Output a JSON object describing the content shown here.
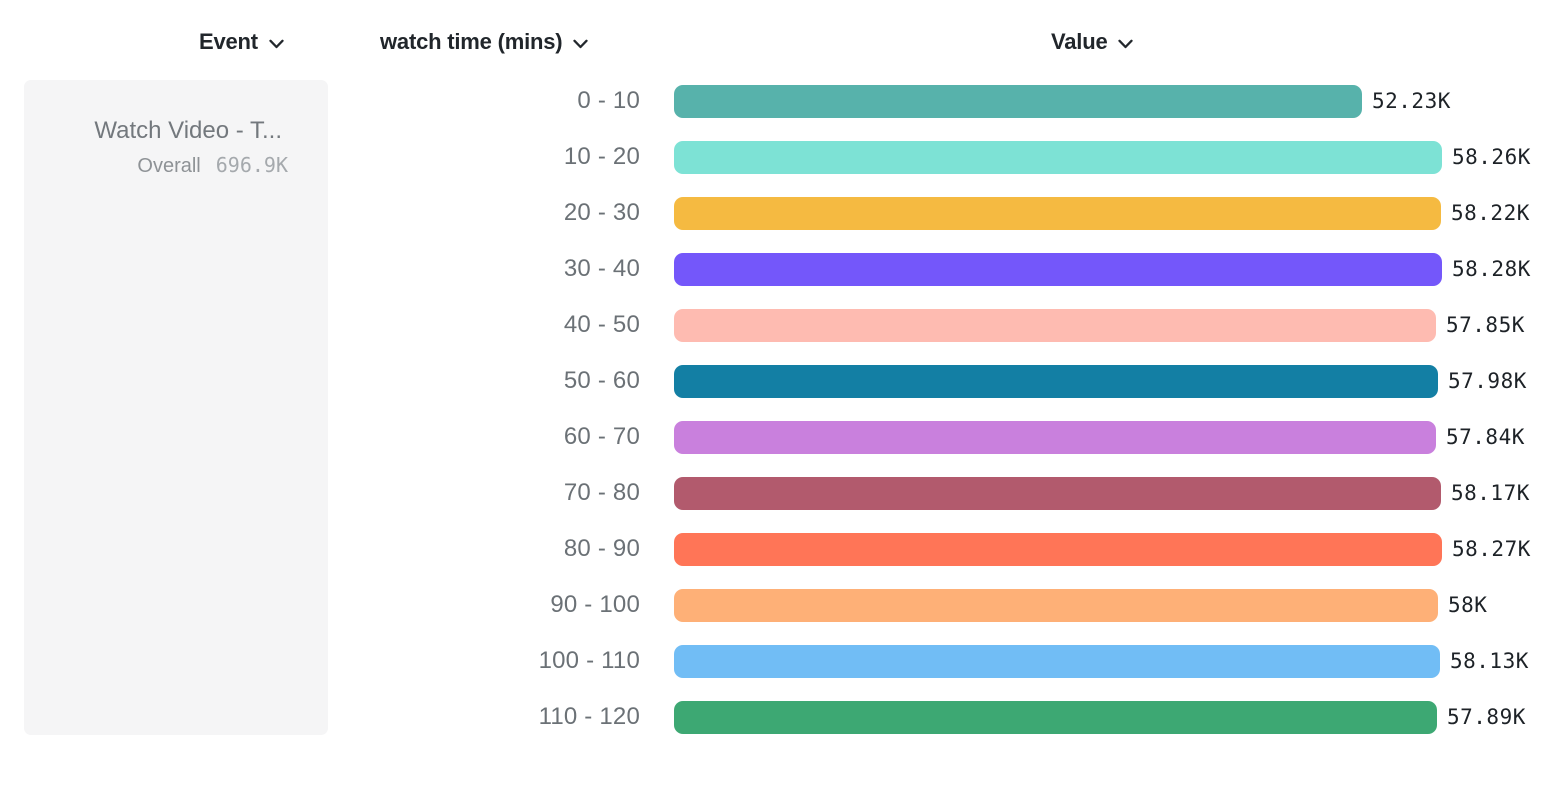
{
  "page": {
    "background": "#ffffff"
  },
  "columns": {
    "event": {
      "label": "Event"
    },
    "breakdown": {
      "label": "watch time (mins)"
    },
    "value": {
      "label": "Value"
    }
  },
  "icons": {
    "chevron_down": "chevron-down-icon",
    "chevron_color": "#23282d"
  },
  "event_card": {
    "title": "Watch Video - T...",
    "overall_label": "Overall",
    "overall_value": "696.9K",
    "background": "#f5f5f6"
  },
  "chart_data": {
    "type": "bar",
    "orientation": "horizontal",
    "title": "",
    "series_name": "watch time (mins)",
    "categories": [
      "0 - 10",
      "10 - 20",
      "20 - 30",
      "30 - 40",
      "40 - 50",
      "50 - 60",
      "60 - 70",
      "70 - 80",
      "80 - 90",
      "90 - 100",
      "100 - 110",
      "110 - 120"
    ],
    "values": [
      52230,
      58260,
      58220,
      58280,
      57850,
      57980,
      57840,
      58170,
      58270,
      58000,
      58130,
      57890
    ],
    "value_labels": [
      "52.23K",
      "58.26K",
      "58.22K",
      "58.28K",
      "57.85K",
      "57.98K",
      "57.84K",
      "58.17K",
      "58.27K",
      "58K",
      "58.13K",
      "57.89K"
    ],
    "colors": [
      "#57b2ab",
      "#7de2d5",
      "#f5ba41",
      "#7457fa",
      "#febbb1",
      "#137fa4",
      "#c980dd",
      "#b25a6d",
      "#ff7557",
      "#feb077",
      "#71bdf5",
      "#3da873"
    ],
    "xlim": [
      0,
      58280
    ],
    "grid": false,
    "legend": "none"
  }
}
